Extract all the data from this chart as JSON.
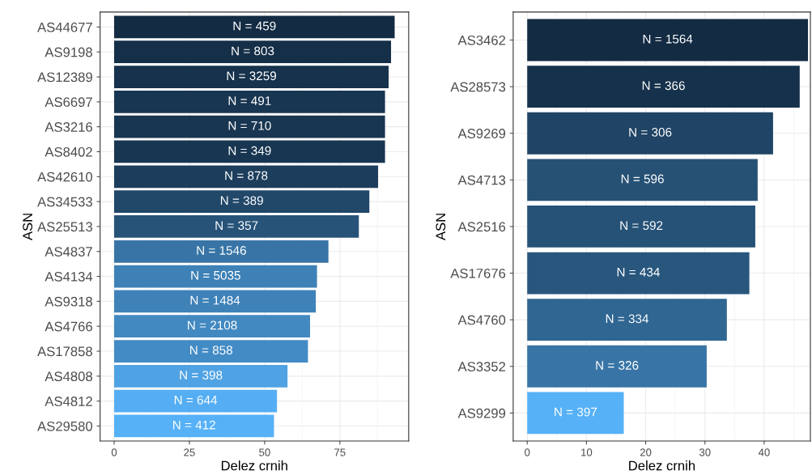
{
  "chart_data": [
    {
      "type": "bar",
      "orientation": "horizontal",
      "xlabel": "Delez crnih",
      "ylabel": "ASN",
      "grid": true,
      "categories": [
        "AS44677",
        "AS9198",
        "AS12389",
        "AS6697",
        "AS3216",
        "AS8402",
        "AS42610",
        "AS34533",
        "AS25513",
        "AS4837",
        "AS4134",
        "AS9318",
        "AS4766",
        "AS17858",
        "AS4808",
        "AS4812",
        "AS29580"
      ],
      "values": [
        93.2,
        92.0,
        91.2,
        90.0,
        90.0,
        90.0,
        87.7,
        84.8,
        81.3,
        71.2,
        67.4,
        67.0,
        65.1,
        64.4,
        57.6,
        54.1,
        53.1
      ],
      "colors": [
        "#132b43",
        "#152f48",
        "#16324c",
        "#183651",
        "#183651",
        "#183651",
        "#1c3e5c",
        "#214769",
        "#275379",
        "#3875a6",
        "#3e81b6",
        "#3f82b8",
        "#4289c1",
        "#438bc5",
        "#4fa2e3",
        "#55aef3",
        "#56b1f7"
      ],
      "annotations": [
        "N = 459",
        "N = 803",
        "N = 3259",
        "N = 491",
        "N = 710",
        "N = 349",
        "N = 878",
        "N = 389",
        "N = 357",
        "N = 1546",
        "N = 5035",
        "N = 1484",
        "N = 2108",
        "N = 858",
        "N = 398",
        "N = 644",
        "N = 412"
      ],
      "xlim": [
        -4.66,
        97.86
      ],
      "xticks": [
        0,
        25,
        50,
        75
      ]
    },
    {
      "type": "bar",
      "orientation": "horizontal",
      "xlabel": "Delez crnih",
      "ylabel": "ASN",
      "grid": true,
      "categories": [
        "AS3462",
        "AS28573",
        "AS9269",
        "AS4713",
        "AS2516",
        "AS17676",
        "AS4760",
        "AS3352",
        "AS9299"
      ],
      "values": [
        47.4,
        46.0,
        41.5,
        38.9,
        38.5,
        37.5,
        33.7,
        30.3,
        16.3
      ],
      "colors": [
        "#132b43",
        "#16314b",
        "#204465",
        "#265175",
        "#265277",
        "#28567d",
        "#306692",
        "#3875a6",
        "#56b1f7"
      ],
      "annotations": [
        "N = 1564",
        "N = 366",
        "N = 306",
        "N = 596",
        "N = 592",
        "N = 434",
        "N = 334",
        "N = 326",
        "N = 397"
      ],
      "xlim": [
        -2.37,
        47.8
      ],
      "xticks": [
        0,
        10,
        20,
        30,
        40
      ]
    }
  ]
}
